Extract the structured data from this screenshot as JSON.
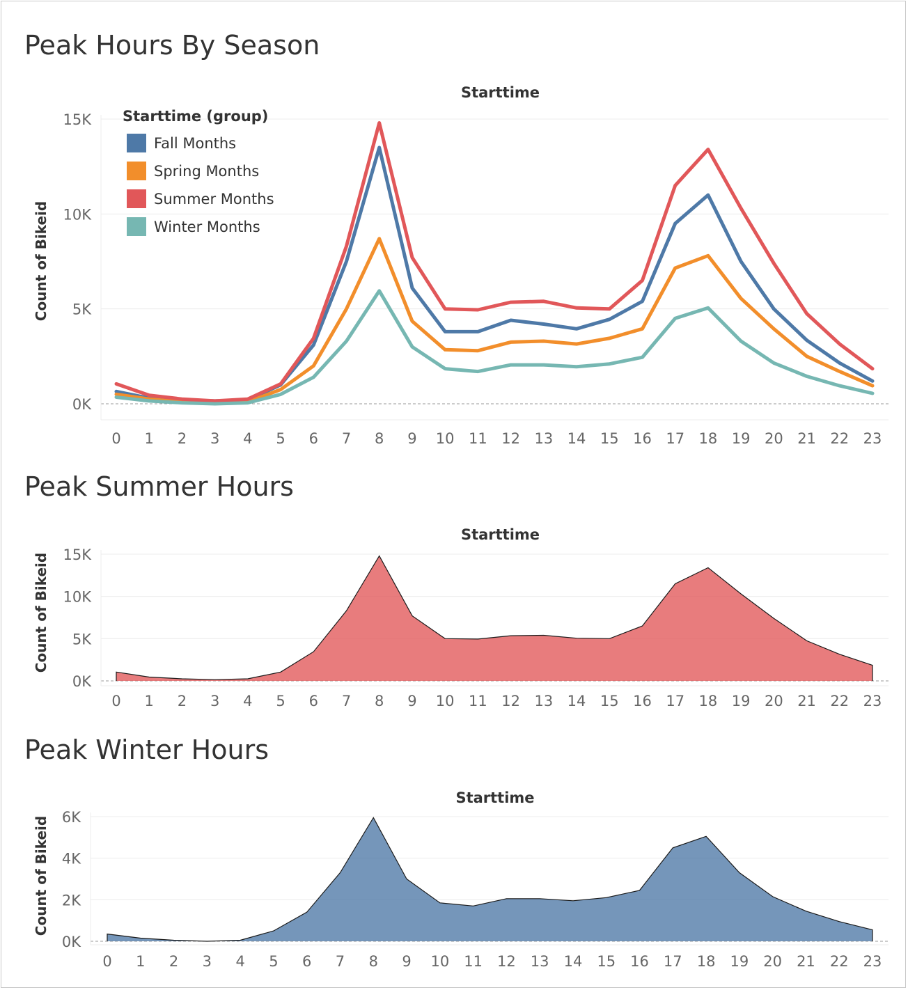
{
  "chart_data": [
    {
      "type": "line",
      "title": "Peak Hours By Season",
      "subtitle": "Starttime",
      "ylabel": "Count of Bikeid",
      "ylim": [
        0,
        15000
      ],
      "y_ticks": [
        "0K",
        "5K",
        "10K",
        "15K"
      ],
      "x": [
        0,
        1,
        2,
        3,
        4,
        5,
        6,
        7,
        8,
        9,
        10,
        11,
        12,
        13,
        14,
        15,
        16,
        17,
        18,
        19,
        20,
        21,
        22,
        23
      ],
      "legend": {
        "title": "Starttime (group)",
        "position": "top-left"
      },
      "series": [
        {
          "name": "Fall Months",
          "color": "#4e79a7",
          "values": [
            650,
            300,
            200,
            150,
            200,
            1000,
            3100,
            7500,
            13500,
            6100,
            3800,
            3800,
            4400,
            4200,
            3950,
            4450,
            5400,
            9500,
            11000,
            7500,
            5000,
            3350,
            2150,
            1200
          ]
        },
        {
          "name": "Spring Months",
          "color": "#f28e2b",
          "values": [
            500,
            250,
            100,
            50,
            100,
            750,
            2000,
            5000,
            8700,
            4350,
            2850,
            2800,
            3250,
            3300,
            3150,
            3450,
            3950,
            7150,
            7800,
            5550,
            3950,
            2500,
            1700,
            950
          ]
        },
        {
          "name": "Summer Months",
          "color": "#e15759",
          "values": [
            1050,
            450,
            250,
            150,
            250,
            1050,
            3450,
            8300,
            14800,
            7700,
            5000,
            4950,
            5350,
            5400,
            5050,
            5000,
            6500,
            11500,
            13400,
            10300,
            7400,
            4750,
            3150,
            1850
          ]
        },
        {
          "name": "Winter Months",
          "color": "#76b7b2",
          "values": [
            350,
            150,
            50,
            0,
            50,
            500,
            1400,
            3300,
            5950,
            3000,
            1850,
            1700,
            2050,
            2050,
            1950,
            2100,
            2450,
            4500,
            5050,
            3300,
            2150,
            1450,
            950,
            550
          ]
        }
      ]
    },
    {
      "type": "area",
      "title": "Peak Summer Hours",
      "subtitle": "Starttime",
      "ylabel": "Count of Bikeid",
      "ylim": [
        0,
        15000
      ],
      "y_ticks": [
        "0K",
        "5K",
        "10K",
        "15K"
      ],
      "x": [
        0,
        1,
        2,
        3,
        4,
        5,
        6,
        7,
        8,
        9,
        10,
        11,
        12,
        13,
        14,
        15,
        16,
        17,
        18,
        19,
        20,
        21,
        22,
        23
      ],
      "color": "#e15759",
      "values": [
        1050,
        450,
        250,
        150,
        250,
        1050,
        3450,
        8300,
        14800,
        7700,
        5000,
        4950,
        5350,
        5400,
        5050,
        5000,
        6500,
        11500,
        13400,
        10300,
        7400,
        4750,
        3150,
        1850
      ]
    },
    {
      "type": "area",
      "title": "Peak Winter Hours",
      "subtitle": "Starttime",
      "ylabel": "Count of Bikeid",
      "ylim": [
        0,
        6000
      ],
      "y_ticks": [
        "0K",
        "2K",
        "4K",
        "6K"
      ],
      "x": [
        0,
        1,
        2,
        3,
        4,
        5,
        6,
        7,
        8,
        9,
        10,
        11,
        12,
        13,
        14,
        15,
        16,
        17,
        18,
        19,
        20,
        21,
        22,
        23
      ],
      "color": "#4e79a7",
      "values": [
        350,
        150,
        50,
        0,
        50,
        500,
        1400,
        3300,
        5950,
        3000,
        1850,
        1700,
        2050,
        2050,
        1950,
        2100,
        2450,
        4500,
        5050,
        3300,
        2150,
        1450,
        950,
        550
      ]
    }
  ]
}
